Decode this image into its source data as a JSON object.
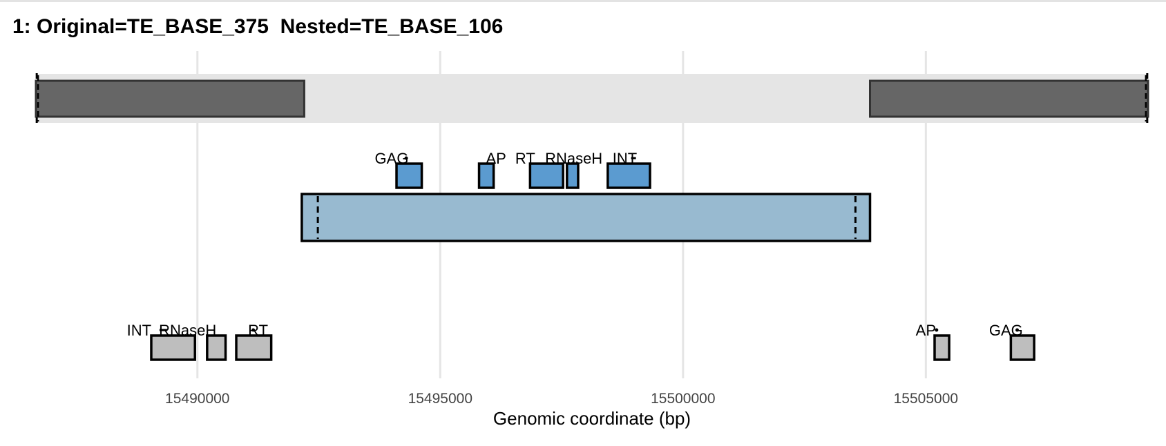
{
  "title": "1: Original=TE_BASE_375  Nested=TE_BASE_106",
  "colors": {
    "background_band": "#e5e5e5",
    "original_ltr": "#666666",
    "nested_body": "#98bad0",
    "nested_domain": "#5b9bd0",
    "original_domain": "#bebebe",
    "grid": "#e5e5e5"
  },
  "chart_data": {
    "type": "genomic-track",
    "xlabel": "Genomic coordinate (bp)",
    "xlim": [
      15486675,
      15509575
    ],
    "xticks": [
      {
        "value": 15490000,
        "label": "15490000"
      },
      {
        "value": 15495000,
        "label": "15495000"
      },
      {
        "value": 15500000,
        "label": "15500000"
      },
      {
        "value": 15505000,
        "label": "15505000"
      }
    ],
    "grid": true,
    "original_element": {
      "span": [
        15486675,
        15509575
      ],
      "ltrs": [
        {
          "start": 15486675,
          "end": 15492200
        },
        {
          "start": 15503850,
          "end": 15509575
        }
      ],
      "boundary_markers": [
        15486720,
        15509530
      ]
    },
    "nested_element": {
      "span": [
        15492150,
        15503850
      ],
      "tsd_markers": [
        15492480,
        15503550
      ],
      "domains": [
        {
          "name": "GAG",
          "start": 15494100,
          "end": 15494620,
          "label": "GAG",
          "label_x": 15494000,
          "dot": 15494300
        },
        {
          "name": "AP",
          "start": 15495800,
          "end": 15496100,
          "label": "AP",
          "label_x": 15496150
        },
        {
          "name": "RT",
          "start": 15496850,
          "end": 15497530,
          "label": "RT",
          "label_x": 15496750
        },
        {
          "name": "RNaseH",
          "start": 15497610,
          "end": 15497840,
          "label": "RNaseH",
          "label_x": 15497750
        },
        {
          "name": "INT",
          "start": 15498450,
          "end": 15499320,
          "label": "INT",
          "label_x": 15498800,
          "dash": [
            15498930,
            15499030
          ]
        }
      ]
    },
    "original_domains": [
      {
        "name": "INT",
        "start": 15489050,
        "end": 15489950,
        "label": "INT",
        "label_x": 15488800,
        "dash": [
          15489220,
          15489380
        ]
      },
      {
        "name": "RNaseH",
        "start": 15490200,
        "end": 15490580,
        "label": "RNaseH",
        "label_x": 15489800
      },
      {
        "name": "RT",
        "start": 15490800,
        "end": 15491520,
        "label": "RT",
        "label_x": 15491250,
        "dot": 15491150
      },
      {
        "name": "AP",
        "start": 15505180,
        "end": 15505480,
        "label": "AP",
        "label_x": 15505000,
        "dot": 15505220
      },
      {
        "name": "GAG",
        "start": 15506750,
        "end": 15507230,
        "label": "GAG",
        "label_x": 15506650,
        "dot": 15506880
      }
    ]
  }
}
